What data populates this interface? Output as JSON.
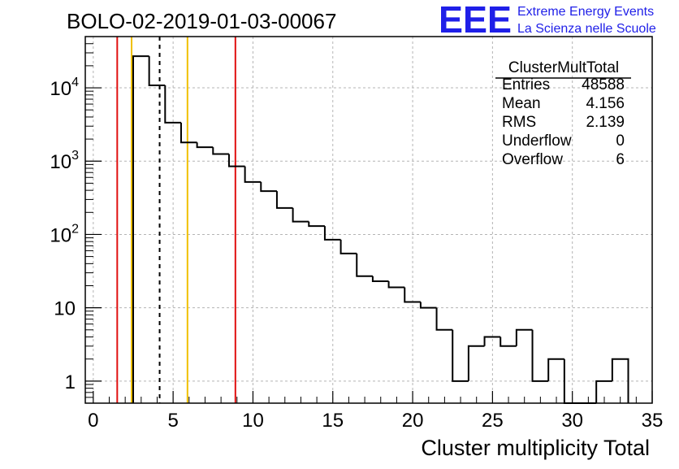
{
  "page_title": "BOLO-02-2019-01-03-00067",
  "logo": {
    "text": "EEE",
    "line1": "Extreme Energy Events",
    "line2": "La Scienza nelle Scuole",
    "color": "#1f1fe8"
  },
  "stats_box": {
    "title": "ClusterMultTotal",
    "rows": [
      {
        "label": "Entries",
        "value": "48588"
      },
      {
        "label": "Mean",
        "value": "4.156"
      },
      {
        "label": "RMS",
        "value": "2.139"
      },
      {
        "label": "Underflow",
        "value": "0"
      },
      {
        "label": "Overflow",
        "value": "6"
      }
    ]
  },
  "chart_data": {
    "type": "histogram",
    "title": "BOLO-02-2019-01-03-00067",
    "xlabel": "Cluster multiplicity Total",
    "ylabel": "",
    "xlim": [
      -0.5,
      35
    ],
    "ylim": [
      0.5,
      50000
    ],
    "yscale": "log",
    "grid": true,
    "x_ticks": [
      0,
      5,
      10,
      15,
      20,
      25,
      30,
      35
    ],
    "x_tick_labels": [
      "0",
      "5",
      "10",
      "15",
      "20",
      "25",
      "30",
      "35"
    ],
    "y_ticks": [
      1,
      10,
      100,
      1000,
      10000
    ],
    "y_tick_labels": [
      {
        "base": "1",
        "exp": ""
      },
      {
        "base": "10",
        "exp": ""
      },
      {
        "base": "10",
        "exp": "2"
      },
      {
        "base": "10",
        "exp": "3"
      },
      {
        "base": "10",
        "exp": "4"
      }
    ],
    "bin_width": 1,
    "bin_low_edges": [
      2.5,
      3.5,
      4.5,
      5.5,
      6.5,
      7.5,
      8.5,
      9.5,
      10.5,
      11.5,
      12.5,
      13.5,
      14.5,
      15.5,
      16.5,
      17.5,
      18.5,
      19.5,
      20.5,
      21.5,
      22.5,
      23.5,
      24.5,
      25.5,
      26.5,
      27.5,
      28.5,
      29.5,
      30.5,
      31.5,
      32.5
    ],
    "counts": [
      27000,
      10800,
      3350,
      1800,
      1550,
      1250,
      850,
      520,
      390,
      230,
      150,
      130,
      85,
      55,
      27,
      23,
      19,
      12,
      10,
      5,
      1,
      3,
      4,
      3,
      5,
      1,
      2,
      0,
      0,
      1,
      2
    ],
    "line_color": "#000000",
    "vertical_lines": [
      {
        "x": 1.5,
        "color": "#e01010",
        "style": "solid"
      },
      {
        "x": 2.4,
        "color": "#f0c000",
        "style": "solid"
      },
      {
        "x": 4.156,
        "color": "#000000",
        "style": "dashed"
      },
      {
        "x": 5.9,
        "color": "#f0c000",
        "style": "solid"
      },
      {
        "x": 8.9,
        "color": "#e01010",
        "style": "solid"
      }
    ]
  }
}
